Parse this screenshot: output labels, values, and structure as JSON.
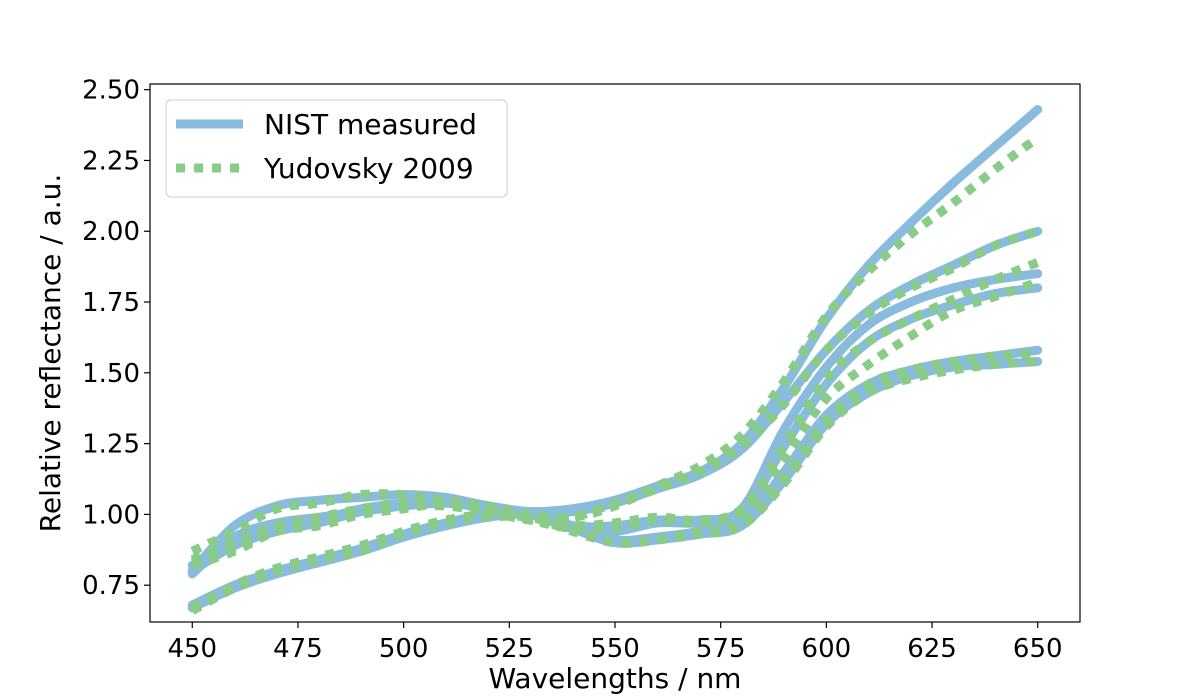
{
  "chart_data": {
    "type": "line",
    "title": "",
    "xlabel": "Wavelengths / nm",
    "ylabel": "Relative reflectance / a.u.",
    "xlim": [
      440,
      660
    ],
    "ylim": [
      0.62,
      2.52
    ],
    "xticks": [
      450,
      475,
      500,
      525,
      550,
      575,
      600,
      625,
      650
    ],
    "yticks": [
      0.75,
      1.0,
      1.25,
      1.5,
      1.75,
      2.0,
      2.25,
      2.5
    ],
    "ytick_labels": [
      "0.75",
      "1.00",
      "1.25",
      "1.50",
      "1.75",
      "2.00",
      "2.25",
      "2.50"
    ],
    "grid": false,
    "legend_position": "top-left",
    "colors": {
      "measured": "#88bbdd",
      "model": "#88cc88"
    },
    "legend": [
      {
        "label": "NIST measured",
        "style": "solid",
        "color": "#88bbdd"
      },
      {
        "label": "Yudovsky 2009",
        "style": "dotted",
        "color": "#88cc88"
      }
    ],
    "x": [
      450,
      460,
      470,
      480,
      490,
      500,
      510,
      520,
      530,
      540,
      550,
      560,
      570,
      580,
      590,
      600,
      610,
      620,
      630,
      640,
      650
    ],
    "series": [
      {
        "group": "measured",
        "values": [
          0.8,
          0.96,
          1.03,
          1.05,
          1.06,
          1.07,
          1.06,
          1.03,
          1.01,
          1.02,
          1.05,
          1.1,
          1.15,
          1.25,
          1.45,
          1.69,
          1.88,
          2.03,
          2.17,
          2.3,
          2.43
        ]
      },
      {
        "group": "measured",
        "values": [
          0.79,
          0.92,
          0.97,
          0.99,
          1.01,
          1.03,
          1.04,
          1.02,
          1.0,
          1.01,
          1.04,
          1.09,
          1.14,
          1.23,
          1.4,
          1.58,
          1.72,
          1.81,
          1.88,
          1.95,
          2.0
        ]
      },
      {
        "group": "measured",
        "values": [
          0.82,
          0.9,
          0.95,
          0.98,
          1.02,
          1.04,
          1.05,
          1.03,
          1.0,
          0.96,
          0.96,
          0.98,
          0.98,
          1.02,
          1.3,
          1.52,
          1.67,
          1.75,
          1.8,
          1.83,
          1.85
        ]
      },
      {
        "group": "measured",
        "values": [
          0.8,
          0.89,
          0.94,
          0.97,
          1.01,
          1.03,
          1.04,
          1.03,
          1.0,
          0.95,
          0.94,
          0.97,
          0.97,
          1.0,
          1.24,
          1.46,
          1.61,
          1.69,
          1.74,
          1.78,
          1.8
        ]
      },
      {
        "group": "measured",
        "values": [
          0.67,
          0.74,
          0.79,
          0.83,
          0.87,
          0.92,
          0.96,
          0.99,
          1.0,
          0.96,
          0.91,
          0.92,
          0.94,
          0.97,
          1.15,
          1.35,
          1.46,
          1.51,
          1.54,
          1.56,
          1.58
        ]
      },
      {
        "group": "measured",
        "values": [
          0.68,
          0.75,
          0.8,
          0.84,
          0.88,
          0.93,
          0.97,
          1.0,
          1.0,
          0.95,
          0.9,
          0.91,
          0.93,
          0.96,
          1.12,
          1.32,
          1.43,
          1.49,
          1.52,
          1.53,
          1.54
        ]
      },
      {
        "group": "model",
        "values": [
          0.87,
          0.94,
          1.02,
          1.04,
          1.07,
          1.07,
          1.05,
          1.03,
          1.0,
          0.99,
          1.03,
          1.1,
          1.17,
          1.28,
          1.47,
          1.7,
          1.86,
          1.99,
          2.1,
          2.22,
          2.33
        ]
      },
      {
        "group": "model",
        "values": [
          0.84,
          0.9,
          0.96,
          0.99,
          1.02,
          1.04,
          1.03,
          1.01,
          0.98,
          0.99,
          1.04,
          1.09,
          1.15,
          1.24,
          1.39,
          1.58,
          1.71,
          1.8,
          1.87,
          1.95,
          2.0
        ]
      },
      {
        "group": "model",
        "values": [
          0.83,
          0.88,
          0.95,
          0.97,
          1.02,
          1.03,
          1.03,
          1.02,
          0.98,
          0.96,
          0.97,
          0.99,
          0.98,
          1.02,
          1.24,
          1.48,
          1.61,
          1.69,
          1.76,
          1.83,
          1.89
        ]
      },
      {
        "group": "model",
        "values": [
          0.82,
          0.87,
          0.94,
          0.96,
          1.0,
          1.02,
          1.04,
          1.02,
          0.98,
          0.95,
          0.95,
          0.98,
          0.97,
          1.01,
          1.2,
          1.41,
          1.53,
          1.63,
          1.72,
          1.77,
          1.82
        ]
      },
      {
        "group": "model",
        "values": [
          0.66,
          0.74,
          0.8,
          0.84,
          0.87,
          0.93,
          0.97,
          0.99,
          0.99,
          0.95,
          0.9,
          0.91,
          0.94,
          0.97,
          1.13,
          1.33,
          1.46,
          1.51,
          1.54,
          1.56,
          1.57
        ]
      },
      {
        "group": "model",
        "values": [
          0.67,
          0.75,
          0.81,
          0.85,
          0.89,
          0.94,
          0.98,
          1.0,
          0.99,
          0.94,
          0.9,
          0.91,
          0.93,
          0.96,
          1.11,
          1.31,
          1.43,
          1.48,
          1.51,
          1.53,
          1.54
        ]
      }
    ]
  }
}
